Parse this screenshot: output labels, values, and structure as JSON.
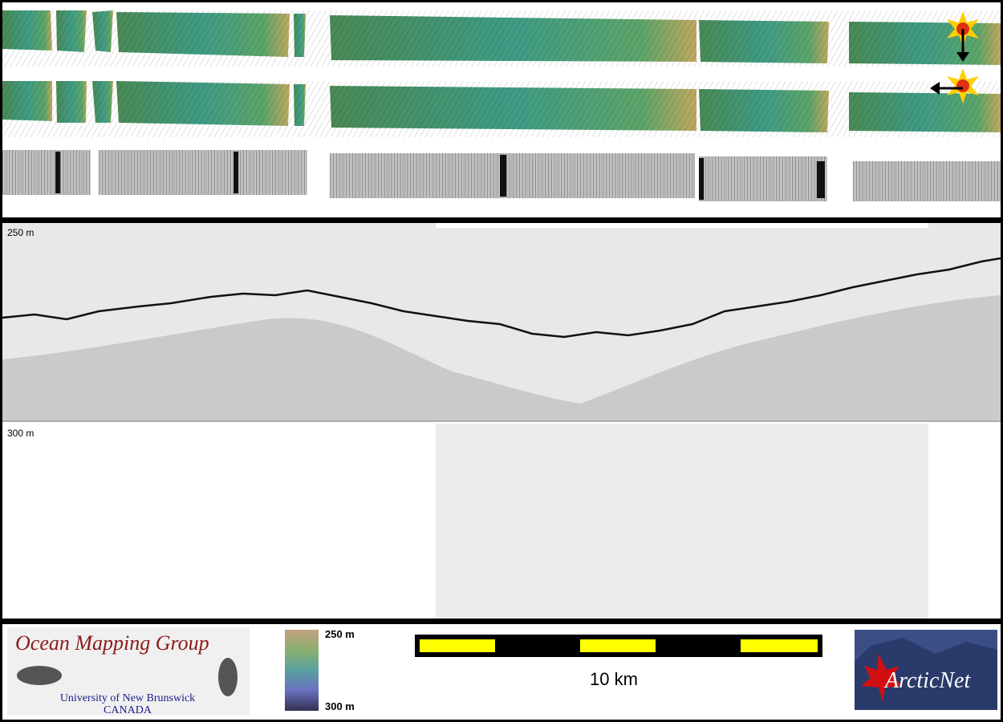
{
  "profile": {
    "depth_top_label": "250 m",
    "depth_mid_label": "300 m"
  },
  "legend": {
    "logo_title": "Ocean Mapping Group",
    "logo_university": "University of New Brunswick",
    "logo_country": "CANADA",
    "colorbar_top": "250 m",
    "colorbar_bottom": "300 m",
    "scale_text": "10 km",
    "partner_logo": "ArcticNet"
  },
  "colors": {
    "strip_green": "#4f9a6a",
    "strip_yellow": "#b3a85a",
    "scale_yellow": "#ffff00",
    "logo_red": "#8b1a1a",
    "logo_blue": "#1a1a8b",
    "arcticnet_bg": "#3c4e86"
  },
  "icons": [
    "sun-icon",
    "arrow-down-icon",
    "sun-icon",
    "arrow-left-icon"
  ]
}
